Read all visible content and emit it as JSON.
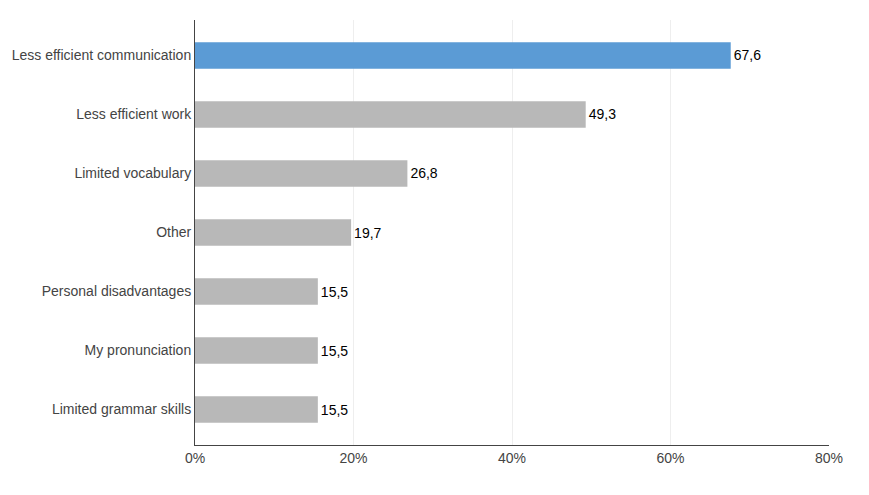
{
  "chart_data": {
    "type": "bar",
    "orientation": "horizontal",
    "categories": [
      "Limited grammar skills",
      "My pronunciation",
      "Personal disadvantages",
      "Other",
      "Limited vocabulary",
      "Less efficient work",
      "Less efficient communication"
    ],
    "values": [
      15.5,
      15.5,
      15.5,
      19.7,
      26.8,
      49.3,
      67.6
    ],
    "value_labels": [
      "15,5",
      "15,5",
      "15,5",
      "19,7",
      "26,8",
      "49,3",
      "67,6"
    ],
    "colors": [
      "#b8b8b8",
      "#b8b8b8",
      "#b8b8b8",
      "#b8b8b8",
      "#b8b8b8",
      "#b8b8b8",
      "#5b9bd5"
    ],
    "data_labels": true,
    "xlim": [
      0,
      80
    ],
    "xticks": [
      {
        "value": 0,
        "label": "0%"
      },
      {
        "value": 20,
        "label": "20%"
      },
      {
        "value": 40,
        "label": "40%"
      },
      {
        "value": 60,
        "label": "60%"
      },
      {
        "value": 80,
        "label": "80%"
      }
    ],
    "grid": true
  }
}
